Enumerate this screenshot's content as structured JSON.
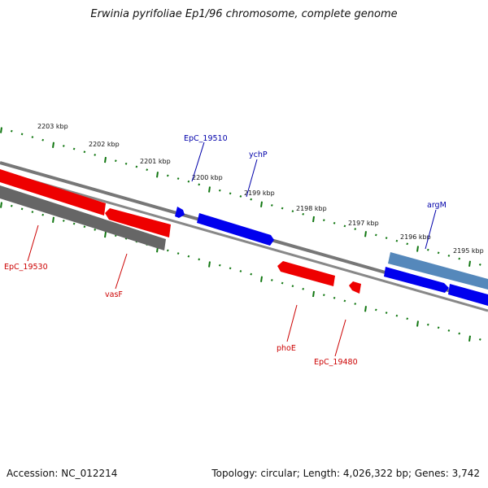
{
  "header": {
    "title": "Erwinia pyrifoliae Ep1/96 chromosome, complete genome"
  },
  "footer": {
    "accession": "Accession: NC_012214",
    "summary": "Topology: circular; Length: 4,026,322 bp; Genes: 3,742"
  },
  "scale": {
    "labels": [
      "2203 kbp",
      "2202 kbp",
      "2201 kbp",
      "2200 kbp",
      "2199 kbp",
      "2198 kbp",
      "2197 kbp",
      "2196 kbp",
      "2195 kbp"
    ]
  },
  "genes": {
    "forward_color": "#0000ee",
    "reverse_color": "#ee0000",
    "pseudo_color": "#666666",
    "other_color": "#4477aa",
    "labels": [
      {
        "name": "EpC_19510",
        "color": "#0000aa"
      },
      {
        "name": "ychP",
        "color": "#0000aa"
      },
      {
        "name": "argM",
        "color": "#0000aa"
      },
      {
        "name": "EpC_19530",
        "color": "#cc0000"
      },
      {
        "name": "vasF",
        "color": "#cc0000"
      },
      {
        "name": "phoE",
        "color": "#cc0000"
      },
      {
        "name": "EpC_19480",
        "color": "#cc0000"
      }
    ]
  },
  "colors": {
    "tick_color": "#117711",
    "backbone_color": "#888888"
  }
}
